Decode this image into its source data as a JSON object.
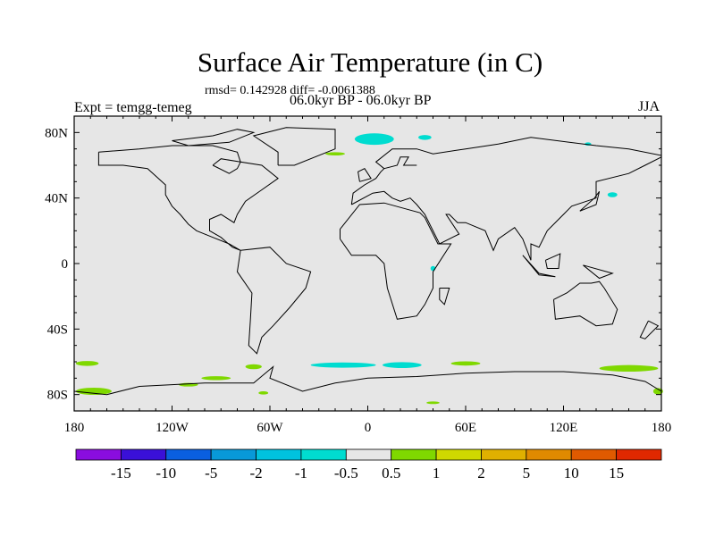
{
  "title": "Surface Air Temperature (in C)",
  "stats": "rmsd= 0.142928 diff= -0.0061388",
  "period": "06.0kyr BP - 06.0kyr BP",
  "experiment": "Expt = temgg-temeg",
  "season": "JJA",
  "map": {
    "ocean_color": "#e6e6e6",
    "lat_labels": [
      {
        "lat": 80,
        "label": "80N"
      },
      {
        "lat": 40,
        "label": "40N"
      },
      {
        "lat": 0,
        "label": "0"
      },
      {
        "lat": -40,
        "label": "40S"
      },
      {
        "lat": -80,
        "label": "80S"
      }
    ],
    "lon_labels": [
      {
        "lon": -180,
        "label": "180"
      },
      {
        "lon": -120,
        "label": "120W"
      },
      {
        "lon": -60,
        "label": "60W"
      },
      {
        "lon": 0,
        "label": "0"
      },
      {
        "lon": 60,
        "label": "60E"
      },
      {
        "lon": 120,
        "label": "120E"
      },
      {
        "lon": 180,
        "label": "180"
      }
    ]
  },
  "colorbar": {
    "colors": [
      "#8a0ddf",
      "#3a10d8",
      "#0a5fe0",
      "#0899d8",
      "#00c2de",
      "#00dcd0",
      "#e6e6e6",
      "#7fd800",
      "#cfd800",
      "#e0b000",
      "#e08a00",
      "#e05a00",
      "#e02800"
    ],
    "labels": [
      "-15",
      "-10",
      "-5",
      "-2",
      "-1",
      "-0.5",
      "0.5",
      "1",
      "2",
      "5",
      "10",
      "15"
    ]
  }
}
